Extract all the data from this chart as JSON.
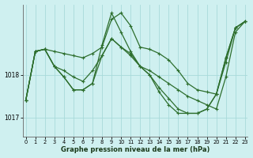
{
  "xlabel": "Graphe pression niveau de la mer (hPa)",
  "bg_color": "#cff0f0",
  "grid_color": "#a8dada",
  "line_color": "#2d6e2d",
  "marker": "+",
  "marker_size": 3,
  "line_width": 0.9,
  "yticks": [
    1017,
    1018
  ],
  "ylim": [
    1016.55,
    1019.65
  ],
  "xlim": [
    -0.3,
    23.3
  ],
  "xticks": [
    0,
    1,
    2,
    3,
    4,
    5,
    6,
    7,
    8,
    9,
    10,
    11,
    12,
    13,
    14,
    15,
    16,
    17,
    18,
    19,
    20,
    21,
    22,
    23
  ],
  "series": [
    [
      1017.4,
      1018.55,
      1018.6,
      1018.55,
      1018.5,
      1018.45,
      1018.4,
      1018.5,
      1018.65,
      1019.3,
      1019.45,
      1019.15,
      1018.65,
      1018.6,
      1018.5,
      1018.35,
      1018.1,
      1017.8,
      1017.65,
      1017.6,
      1017.55,
      1018.3,
      1019.1,
      1019.25
    ],
    [
      1017.4,
      1018.55,
      1018.6,
      1018.2,
      1017.95,
      1017.65,
      1017.65,
      1017.8,
      1018.7,
      1019.45,
      1019.0,
      1018.55,
      1018.2,
      1018.0,
      1017.6,
      1017.3,
      1017.1,
      1017.1,
      1017.1,
      1017.2,
      1017.55,
      1018.4,
      1019.1,
      1019.25
    ],
    [
      1017.4,
      1018.55,
      1018.6,
      1018.2,
      1017.95,
      1017.65,
      1017.65,
      1017.8,
      1018.45,
      1018.85,
      1018.65,
      1018.45,
      1018.2,
      1018.0,
      1017.7,
      1017.45,
      1017.2,
      1017.1,
      1017.1,
      1017.2,
      1017.55,
      1018.4,
      1019.1,
      1019.25
    ],
    [
      1017.4,
      1018.55,
      1018.6,
      1018.2,
      1018.1,
      1017.95,
      1017.85,
      1018.1,
      1018.45,
      1018.85,
      1018.65,
      1018.5,
      1018.2,
      1018.1,
      1017.95,
      1017.8,
      1017.65,
      1017.5,
      1017.4,
      1017.3,
      1017.2,
      1017.95,
      1019.0,
      1019.25
    ]
  ]
}
